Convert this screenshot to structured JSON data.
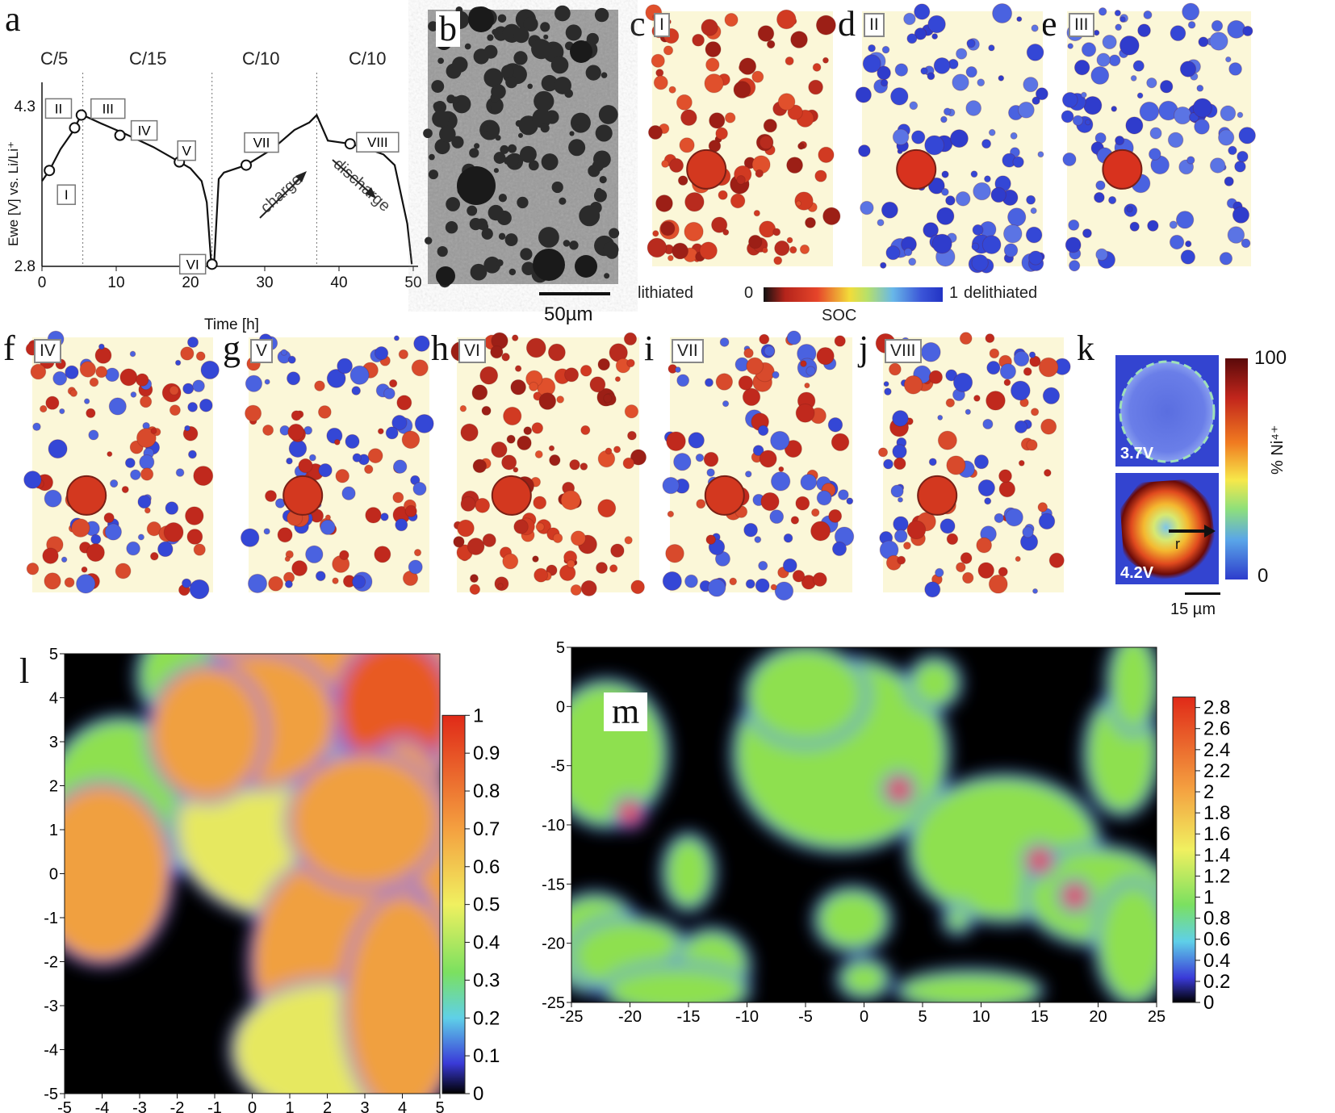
{
  "panel_letters": [
    "a",
    "b",
    "c",
    "d",
    "e",
    "f",
    "g",
    "h",
    "i",
    "j",
    "k",
    "l",
    "m"
  ],
  "rate_labels": [
    "C/5",
    "C/15",
    "C/10",
    "C/10"
  ],
  "point_labels": [
    "I",
    "II",
    "III",
    "IV",
    "V",
    "VI",
    "VII",
    "VIII"
  ],
  "arrow_labels": {
    "charge": "charge",
    "discharge": "discharge"
  },
  "scale_b": "50µm",
  "soc_bar": {
    "left": "lithiated",
    "zero": "0",
    "one": "1",
    "right": "delithiated",
    "caption": "SOC"
  },
  "k": {
    "top": "100",
    "bottom": "0",
    "ylabel": "% Ni⁴⁺",
    "v1": "3.7V",
    "v2": "4.2V",
    "scale": "15 µm",
    "arrow": "r"
  },
  "colors": {
    "lithiated": "#c0291d",
    "delithiated": "#2b3bd1",
    "background": "#fbf7d8"
  },
  "chart_data": [
    {
      "type": "line",
      "panel": "a",
      "xlabel": "Time [h]",
      "ylabel": "Ewe [V] vs. Li/Li⁺",
      "xlim": [
        0,
        50
      ],
      "ylim": [
        2.8,
        4.3
      ],
      "xticks": [
        0,
        10,
        20,
        30,
        40,
        50
      ],
      "yticks": [
        2.8,
        4.3
      ],
      "x": [
        0,
        1,
        2.5,
        4,
        5,
        5.5,
        8,
        11,
        15,
        18.5,
        20,
        21.5,
        22.2,
        22.8,
        23.2,
        23.8,
        24.5,
        27.5,
        31,
        34,
        36,
        37,
        38.5,
        41.5,
        44,
        46,
        47.5,
        49.2,
        49.8
      ],
      "y": [
        3.6,
        3.7,
        3.9,
        4.05,
        4.18,
        4.22,
        4.14,
        4.05,
        3.92,
        3.78,
        3.72,
        3.6,
        3.4,
        2.82,
        2.84,
        3.62,
        3.68,
        3.75,
        3.9,
        4.08,
        4.15,
        4.22,
        3.98,
        3.95,
        3.9,
        3.85,
        3.75,
        3.2,
        2.82
      ],
      "markers": [
        {
          "label": "I",
          "x": 1,
          "y": 3.7
        },
        {
          "label": "II",
          "x": 4.4,
          "y": 4.1
        },
        {
          "label": "III",
          "x": 5.3,
          "y": 4.22
        },
        {
          "label": "IV",
          "x": 10.5,
          "y": 4.03
        },
        {
          "label": "V",
          "x": 18.5,
          "y": 3.78
        },
        {
          "label": "VI",
          "x": 22.9,
          "y": 2.82
        },
        {
          "label": "VII",
          "x": 27.5,
          "y": 3.75
        },
        {
          "label": "VIII",
          "x": 41.5,
          "y": 3.95
        }
      ],
      "dividers": [
        5.5,
        22.9,
        37
      ]
    },
    {
      "type": "heatmap",
      "panel": "l",
      "xlim": [
        -5,
        5
      ],
      "ylim": [
        -5,
        5
      ],
      "xticks": [
        -5,
        -4,
        -3,
        -2,
        -1,
        0,
        1,
        2,
        3,
        4,
        5
      ],
      "yticks": [
        -5,
        -4,
        -3,
        -2,
        -1,
        0,
        1,
        2,
        3,
        4,
        5
      ],
      "colorbar": {
        "min": 0,
        "max": 1,
        "ticks": [
          "0",
          "0.1",
          "0.2",
          "0.3",
          "0.4",
          "0.5",
          "0.6",
          "0.7",
          "0.8",
          "0.9",
          "1"
        ]
      }
    },
    {
      "type": "heatmap",
      "panel": "m",
      "xlim": [
        -25,
        25
      ],
      "ylim": [
        -25,
        5
      ],
      "xticks": [
        -25,
        -20,
        -15,
        -10,
        -5,
        0,
        5,
        10,
        15,
        20,
        25
      ],
      "yticks": [
        -25,
        -20,
        -15,
        -10,
        -5,
        0,
        5
      ],
      "colorbar": {
        "min": 0,
        "max": 2.9,
        "ticks": [
          "0",
          "0.2",
          "0.4",
          "0.6",
          "0.8",
          "1",
          "1.2",
          "1.4",
          "1.6",
          "1.8",
          "2",
          "2.2",
          "2.4",
          "2.6",
          "2.8"
        ]
      }
    }
  ],
  "map_panels": [
    {
      "letter": "c",
      "label": "I",
      "state": "lithiated"
    },
    {
      "letter": "d",
      "label": "II",
      "state": "delithiated"
    },
    {
      "letter": "e",
      "label": "III",
      "state": "delithiated"
    },
    {
      "letter": "f",
      "label": "IV",
      "state": "mixed"
    },
    {
      "letter": "g",
      "label": "V",
      "state": "mixed"
    },
    {
      "letter": "h",
      "label": "VI",
      "state": "lithiated"
    },
    {
      "letter": "i",
      "label": "VII",
      "state": "mixed"
    },
    {
      "letter": "j",
      "label": "VIII",
      "state": "mixed"
    }
  ]
}
